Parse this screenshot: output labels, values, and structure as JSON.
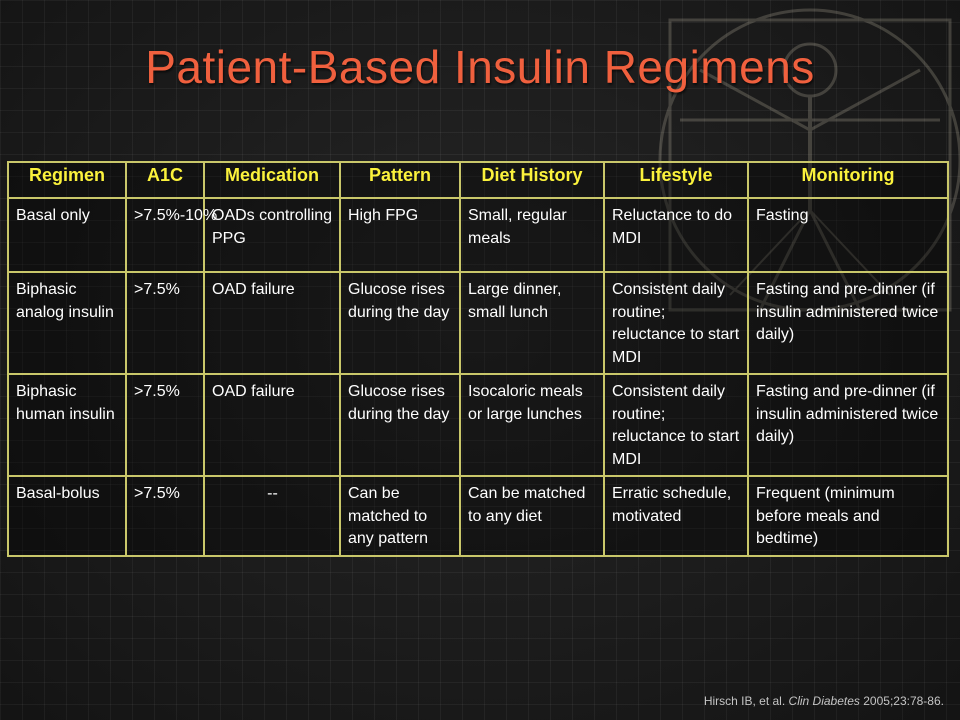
{
  "slide": {
    "title": "Patient-Based Insulin Regimens",
    "citation": {
      "authors": "Hirsch IB, et al.",
      "journal": "Clin Diabetes",
      "details": "2005;23:78-86."
    }
  },
  "table": {
    "headers": [
      "Regimen",
      "A1C",
      "Medication",
      "Pattern",
      "Diet History",
      "Lifestyle",
      "Monitoring"
    ],
    "rows": [
      [
        "Basal only",
        ">7.5%-10%",
        "OADs controlling PPG",
        "High FPG",
        "Small, regular meals",
        "Reluctance to do MDI",
        "Fasting"
      ],
      [
        "Biphasic analog insulin",
        ">7.5%",
        "OAD failure",
        "Glucose rises during the day",
        "Large dinner, small lunch",
        "Consistent daily routine; reluctance to start MDI",
        "Fasting and pre-dinner (if insulin administered twice daily)"
      ],
      [
        "Biphasic human insulin",
        ">7.5%",
        "OAD failure",
        "Glucose rises during the day",
        "Isocaloric meals or large lunches",
        "Consistent daily routine; reluctance to start MDI",
        "Fasting and pre-dinner (if insulin administered twice daily)"
      ],
      [
        "Basal-bolus",
        ">7.5%",
        "--",
        "Can be matched to any pattern",
        "Can be matched to any diet",
        "Erratic schedule, motivated",
        "Frequent (minimum before meals and bedtime)"
      ]
    ]
  },
  "colors": {
    "title": "#f0603e",
    "header_text": "#fbf23c",
    "border": "#c9c76a",
    "body_text": "#ffffff",
    "background": "#1e1e1e"
  }
}
